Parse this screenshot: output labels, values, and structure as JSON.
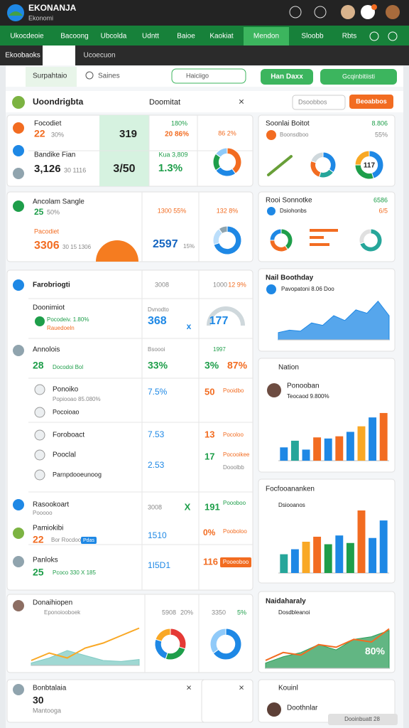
{
  "header": {
    "title": "EKONANJA",
    "subtitle": "Ekonomi"
  },
  "nav": [
    "Ukocdeoie",
    "Bacoong",
    "Ubcolda",
    "Udntt",
    "Baioe",
    "Kaokiat",
    "Mendon",
    "Sloobb",
    "Rbts"
  ],
  "tabs": [
    "Ekoobaoks",
    "Ucoecuon"
  ],
  "toolbar": {
    "tab": "Surpahtaio",
    "search": "Saines",
    "field": "Haiciigo",
    "primary": "Han Daxx",
    "secondary": "Gcqinbitiisti"
  },
  "panel": {
    "title": "Uoondrigbta",
    "subtitle": "Doomitat",
    "action": "Dsoobbos",
    "button": "Beoabbos"
  },
  "block_a": {
    "label": "Focodiet",
    "value": "22",
    "delta": "30%",
    "highlight": "319",
    "rate": "180%",
    "rate_b": "20 86%",
    "tag": "86 2%",
    "label_b": "Bandike Fian",
    "value_b": "3,126",
    "delta_b": "30 1116",
    "highlight_b": "3/50",
    "rate_c": "Kua 3,809",
    "main": "1.3%"
  },
  "block_b": {
    "label": "Ancolam Sangle",
    "value": "25",
    "delta": "50%",
    "tag": "Pacodiet",
    "big": "3306",
    "big_note": "30 15 1306",
    "rate": "1300 55%",
    "main": "2597",
    "sub": "15%",
    "tag_b": "132 8%"
  },
  "table": {
    "title": "Farobriogti",
    "col_a": "3008",
    "col_b": "1000",
    "col_c": "12 9%",
    "r1": {
      "label": "Doonimiot",
      "note": "Pocodeiv. 1.80%",
      "sub": "Rauedoeln",
      "head": "Dvnodto",
      "value": "368",
      "mark": "x",
      "gauge": "177"
    },
    "r2": {
      "label": "Annolois",
      "value": "28",
      "note": "Docodoi Bol",
      "head": "Bsoooi",
      "head_b": "1997",
      "a": "33%",
      "b": "3%",
      "c": "87%"
    },
    "r3": {
      "label": "Ponoiko",
      "note": "Popiooao 85.080%",
      "sub": "Pocoioao",
      "a": "7.5%",
      "b": "50",
      "c": "Pooidbo"
    },
    "r4": {
      "label": "Foroboact",
      "label_b": "Pooclal",
      "label_c": "Parnpdooeunoog",
      "a": "7.53",
      "b": "13",
      "c": "Pocoloo",
      "d": "17",
      "e": "Pocooikee",
      "f": "2.53",
      "g": "Dooolbb"
    },
    "r5": {
      "label": "Rasookoart",
      "sub": "Pooooo",
      "a": "3008",
      "mark": "X",
      "b": "191",
      "c": "Poooboo",
      "label_b": "Pamiokibi",
      "value": "22",
      "note": "Bor Rocdoo",
      "pill": "Pdas",
      "d": "1510",
      "e": "0%",
      "f": "Pooboloo"
    },
    "r6": {
      "label": "Panloks",
      "value": "25",
      "note": "Pcoco 330 X 185",
      "a": "1I5D1",
      "b": "116",
      "button": "Pooeoboo"
    }
  },
  "block_d": {
    "label": "Donaihiopen",
    "sub": "Eponoiooboek",
    "a": "5908",
    "b": "20%",
    "c": "3350",
    "d": "5%"
  },
  "block_e": {
    "label": "Bonbtalaia",
    "value": "30",
    "sub": "Mantooga"
  },
  "cards": {
    "c1": {
      "title": "Soonlai Boitot",
      "sub": "Boonsdboo",
      "value": "8.806",
      "rate": "55%"
    },
    "c2": {
      "title": "Rooi Sonnotke",
      "sub": "Dsiohonbs",
      "value": "6586",
      "rate": "6/5"
    },
    "c3": {
      "title": "Nail Boothday",
      "sub": "Pavopatoni 8.06 Doo"
    },
    "c4": {
      "title": "Nation",
      "person": "Ponooban",
      "note": "Teocaod 9.800%"
    },
    "c5": {
      "title": "Focfooananken",
      "sub": "Dsiooanos"
    },
    "c6": {
      "title": "Naidaharaly",
      "sub": "Dosdbleanoi",
      "label": "80%"
    },
    "c7": {
      "title": "Kouinl",
      "person": "Doothnlar"
    },
    "footer": "Dooinbuatt 28"
  },
  "charts": {
    "d1": {
      "type": "pie",
      "values": [
        40,
        25,
        20,
        15
      ],
      "colors": [
        "#f26c21",
        "#1e88e5",
        "#1e9e4a",
        "#90caf9"
      ]
    },
    "d2": {
      "type": "pie",
      "values": [
        70,
        20,
        10
      ],
      "colors": [
        "#1e88e5",
        "#bbdefb",
        "#90a4ae"
      ]
    },
    "d3": {
      "type": "pie",
      "values": [
        35,
        20,
        25,
        20
      ],
      "colors": [
        "#1e88e5",
        "#26a69a",
        "#f26c21",
        "#cfd8dc"
      ]
    },
    "d4": {
      "type": "pie",
      "values": [
        45,
        30,
        25
      ],
      "colors": [
        "#1e88e5",
        "#1e9e4a",
        "#f9a825"
      ],
      "label": "117"
    },
    "d5": {
      "type": "pie",
      "values": [
        40,
        35,
        25
      ],
      "colors": [
        "#1e9e4a",
        "#f26c21",
        "#1e88e5"
      ]
    },
    "d6": {
      "type": "pie",
      "values": [
        70,
        30
      ],
      "colors": [
        "#26a69a",
        "#e0e0e0"
      ]
    },
    "d7": {
      "type": "pie",
      "values": [
        30,
        25,
        25,
        20
      ],
      "colors": [
        "#e53935",
        "#1e9e4a",
        "#1e88e5",
        "#f9a825"
      ]
    },
    "d8": {
      "type": "pie",
      "values": [
        65,
        35
      ],
      "colors": [
        "#1e88e5",
        "#90caf9"
      ]
    },
    "bars1": {
      "type": "bar",
      "ylim": [
        0,
        100
      ],
      "values": [
        24,
        36,
        20,
        42,
        40,
        44,
        52,
        62,
        78,
        86
      ],
      "colors": [
        "#1e88e5",
        "#26a69a",
        "#1e88e5",
        "#f26c21",
        "#1e88e5",
        "#f26c21",
        "#1e88e5",
        "#f9a825",
        "#1e88e5",
        "#f26c21"
      ]
    },
    "bars2": {
      "type": "bar",
      "ylim": [
        0,
        100
      ],
      "values": [
        30,
        38,
        50,
        58,
        46,
        60,
        48,
        100,
        56,
        84
      ],
      "colors": [
        "#26a69a",
        "#1e88e5",
        "#f9a825",
        "#f26c21",
        "#1e9e4a",
        "#1e88e5",
        "#1e9e4a",
        "#f26c21",
        "#1e88e5",
        "#1e88e5"
      ]
    },
    "area1": {
      "type": "area",
      "ylim": [
        0,
        100
      ],
      "series": [
        {
          "color": "#1e88e5",
          "values": [
            15,
            20,
            18,
            35,
            30,
            50,
            40,
            62,
            55,
            80,
            50
          ]
        }
      ]
    },
    "area2": {
      "type": "area",
      "ylim": [
        0,
        100
      ],
      "series": [
        {
          "color": "#2e9e5a",
          "values": [
            10,
            22,
            30,
            45,
            35,
            55,
            60,
            72
          ]
        },
        {
          "color": "#f26c21",
          "values": [
            15,
            30,
            25,
            45,
            40,
            55,
            50,
            75
          ],
          "line": true
        }
      ]
    },
    "line3": {
      "type": "area",
      "ylim": [
        0,
        100
      ],
      "series": [
        {
          "color": "#80cbc4",
          "values": [
            5,
            15,
            30,
            20,
            10,
            8,
            12
          ]
        },
        {
          "color": "#f9a825",
          "values": [
            10,
            25,
            15,
            35,
            45,
            60,
            75
          ],
          "line": true
        }
      ]
    }
  }
}
